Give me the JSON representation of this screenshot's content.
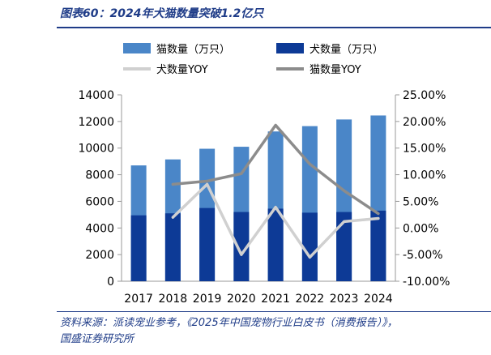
{
  "title": "图表60：2024年犬猫数量突破1.2亿只",
  "source_line1": "资料来源：派读宠业参考，《2025年中国宠物行业白皮书（消费报告）》，",
  "source_line2": "国盛证券研究所",
  "colors": {
    "cat_bar": "#4a86c8",
    "dog_bar": "#0d3a96",
    "dog_yoy": "#d0d0d0",
    "cat_yoy": "#8c8c8c",
    "accent": "#1f3c88"
  },
  "chart_data": {
    "type": "bar",
    "categories": [
      "2017",
      "2018",
      "2019",
      "2020",
      "2021",
      "2022",
      "2023",
      "2024"
    ],
    "series": [
      {
        "name": "猫数量（万只）",
        "type": "bar",
        "axis": "left",
        "values": [
          8700,
          9150,
          9950,
          10100,
          11250,
          11650,
          12150,
          12450
        ]
      },
      {
        "name": "犬数量（万只）",
        "type": "bar",
        "axis": "left",
        "values": [
          4950,
          5100,
          5500,
          5200,
          5450,
          5150,
          5200,
          5300
        ]
      },
      {
        "name": "犬数量YOY",
        "type": "line",
        "axis": "right",
        "values": [
          null,
          2.0,
          8.2,
          -5.0,
          3.9,
          -5.5,
          1.2,
          1.8
        ]
      },
      {
        "name": "猫数量YOY",
        "type": "line",
        "axis": "right",
        "values": [
          null,
          8.2,
          8.8,
          10.2,
          19.3,
          12.0,
          7.0,
          2.7
        ]
      }
    ],
    "y_left": {
      "min": 0,
      "max": 14000,
      "ticks": [
        "0",
        "2000",
        "4000",
        "6000",
        "8000",
        "10000",
        "12000",
        "14000"
      ]
    },
    "y_right": {
      "min": -10,
      "max": 25,
      "ticks": [
        "-10.00%",
        "-5.00%",
        "0.00%",
        "5.00%",
        "10.00%",
        "15.00%",
        "20.00%",
        "25.00%"
      ]
    },
    "legend_position": "top",
    "grid": false
  }
}
